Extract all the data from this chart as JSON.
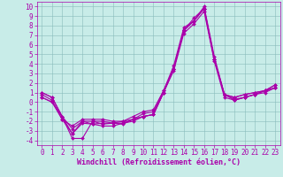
{
  "title": "",
  "xlabel": "Windchill (Refroidissement éolien,°C)",
  "ylabel": "",
  "background_color": "#c8ece8",
  "line_color": "#aa00aa",
  "xlim": [
    -0.5,
    23.5
  ],
  "ylim": [
    -4.5,
    10.5
  ],
  "xticks": [
    0,
    1,
    2,
    3,
    4,
    5,
    6,
    7,
    8,
    9,
    10,
    11,
    12,
    13,
    14,
    15,
    16,
    17,
    18,
    19,
    20,
    21,
    22,
    23
  ],
  "yticks": [
    -4,
    -3,
    -2,
    -1,
    0,
    1,
    2,
    3,
    4,
    5,
    6,
    7,
    8,
    9,
    10
  ],
  "series": [
    [
      1.0,
      0.5,
      -1.5,
      -3.8,
      -3.8,
      -2.0,
      -2.3,
      -2.2,
      -2.3,
      -1.8,
      -1.5,
      -1.3,
      1.0,
      3.5,
      7.5,
      8.5,
      10.0,
      4.8,
      0.8,
      0.5,
      0.8,
      1.0,
      1.2,
      1.8
    ],
    [
      1.0,
      0.5,
      -1.5,
      -3.3,
      -2.2,
      -2.3,
      -2.5,
      -2.5,
      -2.2,
      -2.0,
      -1.5,
      -1.3,
      1.0,
      3.5,
      7.5,
      8.8,
      9.8,
      4.5,
      0.8,
      0.3,
      0.5,
      0.8,
      1.2,
      1.5
    ],
    [
      0.8,
      0.2,
      -1.8,
      -3.3,
      -2.0,
      -2.0,
      -2.0,
      -2.2,
      -2.0,
      -1.8,
      -1.2,
      -1.0,
      1.2,
      3.8,
      7.8,
      8.5,
      9.8,
      4.5,
      0.8,
      0.2,
      0.5,
      0.8,
      1.2,
      1.5
    ],
    [
      0.5,
      0.0,
      -1.5,
      -2.8,
      -2.0,
      -2.3,
      -2.2,
      -2.2,
      -2.2,
      -1.8,
      -1.5,
      -1.3,
      1.0,
      3.3,
      7.2,
      8.2,
      9.5,
      4.3,
      0.5,
      0.2,
      0.5,
      0.8,
      1.0,
      1.5
    ],
    [
      0.5,
      0.0,
      -1.8,
      -2.5,
      -1.8,
      -1.8,
      -1.8,
      -2.0,
      -2.0,
      -1.5,
      -1.0,
      -0.8,
      1.2,
      3.5,
      7.5,
      8.5,
      9.8,
      4.5,
      0.8,
      0.5,
      0.8,
      1.0,
      1.2,
      1.8
    ]
  ],
  "tick_fontsize": 5.5,
  "xlabel_fontsize": 6.0,
  "grid_color": "#88bbbb",
  "grid_linewidth": 0.4,
  "line_linewidth": 0.8,
  "marker_size": 2.0
}
